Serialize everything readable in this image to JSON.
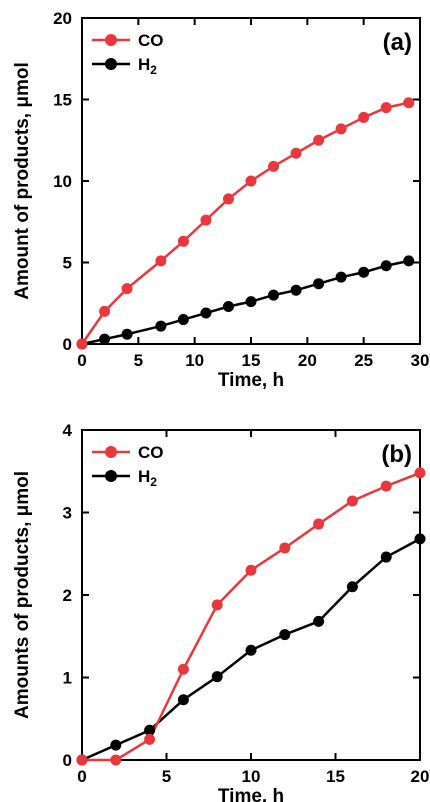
{
  "chart_data": [
    {
      "type": "line",
      "panel_label": "(a)",
      "xlabel": "Time, h",
      "ylabel": "Amount of products, μmol",
      "xlim": [
        0,
        30
      ],
      "ylim": [
        0,
        20
      ],
      "xticks": [
        "0",
        "5",
        "10",
        "15",
        "20",
        "25",
        "30"
      ],
      "yticks": [
        "0",
        "5",
        "10",
        "15",
        "20"
      ],
      "legend_position": "top-left",
      "grid": false,
      "series": [
        {
          "name": "CO",
          "color": "#e8383d",
          "x": [
            0,
            2,
            4,
            7,
            9,
            11,
            13,
            15,
            17,
            19,
            21,
            23,
            25,
            27,
            29
          ],
          "y": [
            0,
            2.0,
            3.4,
            5.1,
            6.3,
            7.6,
            8.9,
            10.0,
            10.9,
            11.7,
            12.5,
            13.2,
            13.9,
            14.5,
            14.8
          ]
        },
        {
          "name": "H2",
          "color": "#000000",
          "x": [
            0,
            2,
            4,
            7,
            9,
            11,
            13,
            15,
            17,
            19,
            21,
            23,
            25,
            27,
            29
          ],
          "y": [
            0,
            0.3,
            0.6,
            1.1,
            1.5,
            1.9,
            2.3,
            2.6,
            3.0,
            3.3,
            3.7,
            4.1,
            4.4,
            4.8,
            5.1
          ]
        }
      ]
    },
    {
      "type": "line",
      "panel_label": "(b)",
      "xlabel": "Time, h",
      "ylabel": "Amounts of products, μmol",
      "xlim": [
        0,
        20
      ],
      "ylim": [
        0,
        4
      ],
      "xticks": [
        "0",
        "5",
        "10",
        "15",
        "20"
      ],
      "yticks": [
        "0",
        "1",
        "2",
        "3",
        "4"
      ],
      "legend_position": "top-left",
      "grid": false,
      "series": [
        {
          "name": "CO",
          "color": "#e8383d",
          "x": [
            0,
            2,
            4,
            6,
            8,
            10,
            12,
            14,
            16,
            18,
            20
          ],
          "y": [
            0,
            0.0,
            0.25,
            1.1,
            1.88,
            2.3,
            2.57,
            2.86,
            3.14,
            3.32,
            3.48
          ]
        },
        {
          "name": "H2",
          "color": "#000000",
          "x": [
            0,
            2,
            4,
            6,
            8,
            10,
            12,
            14,
            16,
            18,
            20
          ],
          "y": [
            0,
            0.18,
            0.36,
            0.73,
            1.01,
            1.33,
            1.52,
            1.68,
            2.1,
            2.46,
            2.68
          ]
        }
      ]
    }
  ]
}
